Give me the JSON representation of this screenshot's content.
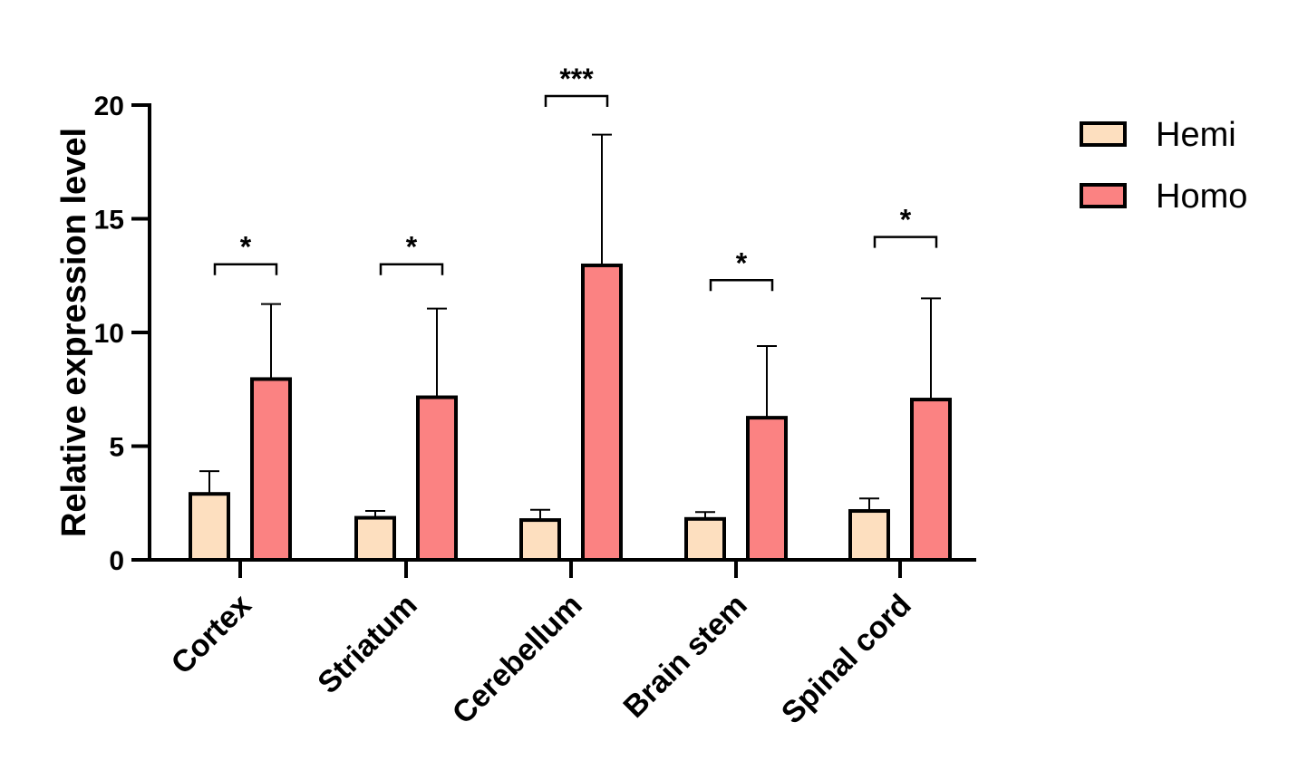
{
  "chart_data": {
    "type": "bar",
    "title": "",
    "xlabel": "",
    "ylabel": "Relative expression level",
    "ylim": [
      0,
      20
    ],
    "yticks": [
      "0",
      "5",
      "10",
      "15",
      "20"
    ],
    "categories": [
      "Cortex",
      "Striatum",
      "Cerebellum",
      "Brain stem",
      "Spinal cord"
    ],
    "series": [
      {
        "name": "Hemi",
        "color": "#FDDFBF",
        "values": [
          2.9,
          1.85,
          1.75,
          1.8,
          2.15
        ],
        "error": [
          1.0,
          0.3,
          0.45,
          0.3,
          0.55
        ]
      },
      {
        "name": "Homo",
        "color": "#FB8282",
        "values": [
          7.95,
          7.15,
          12.95,
          6.25,
          7.05
        ],
        "error": [
          3.3,
          3.9,
          5.75,
          3.15,
          4.45
        ]
      }
    ],
    "significance": [
      "*",
      "*",
      "***",
      "*",
      "*"
    ],
    "significance_bracket_y": [
      13.0,
      13.0,
      20.4,
      12.3,
      14.2
    ],
    "legend_position": "top-right",
    "grid": false
  }
}
